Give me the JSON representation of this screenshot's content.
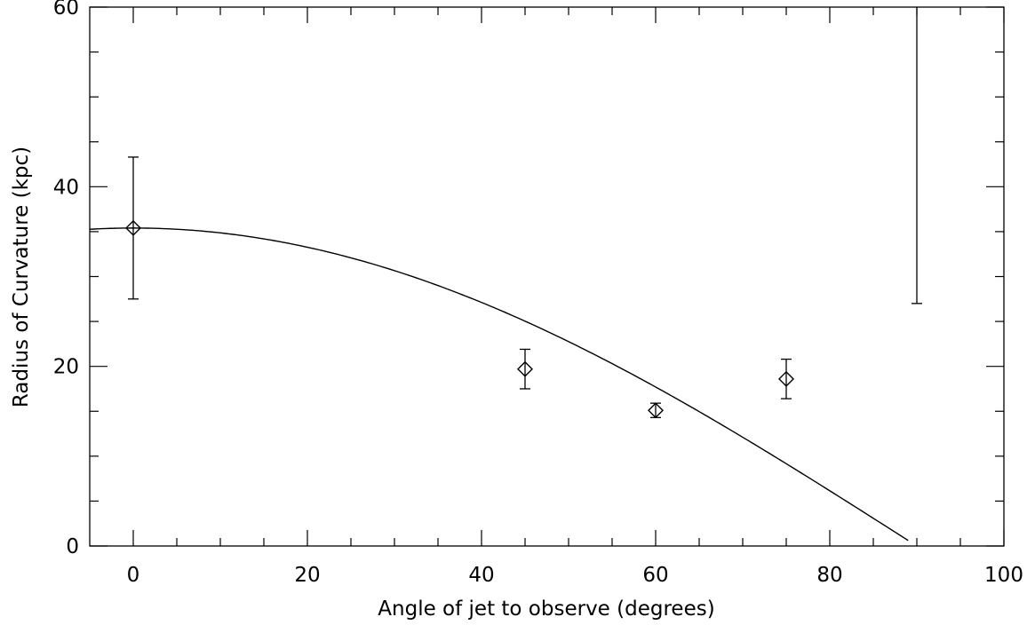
{
  "chart_data": {
    "type": "scatter",
    "title": "",
    "xlabel": "Angle of jet to observe (degrees)",
    "ylabel": "Radius of Curvature (kpc)",
    "xlim": [
      -5,
      100
    ],
    "ylim": [
      0,
      60
    ],
    "x_ticks": [
      "0",
      "20",
      "40",
      "60",
      "80",
      "100"
    ],
    "y_ticks": [
      "0",
      "20",
      "40",
      "60"
    ],
    "grid": false,
    "legend": "none",
    "points": [
      {
        "x": 0,
        "y": 35.4,
        "yerr_low": 27.5,
        "yerr_high": 43.3
      },
      {
        "x": 45,
        "y": 19.7,
        "yerr_low": 17.5,
        "yerr_high": 21.9
      },
      {
        "x": 60,
        "y": 15.1,
        "yerr_low": 14.3,
        "yerr_high": 15.9
      },
      {
        "x": 75,
        "y": 18.6,
        "yerr_low": 16.4,
        "yerr_high": 20.8
      },
      {
        "x": 90,
        "y": null,
        "yerr_low": 27.0,
        "yerr_high": 60
      }
    ],
    "model_curve": {
      "description": "y = 35.4 * cos(x)",
      "amplitude": 35.4,
      "x_range": [
        -5,
        89
      ]
    }
  }
}
